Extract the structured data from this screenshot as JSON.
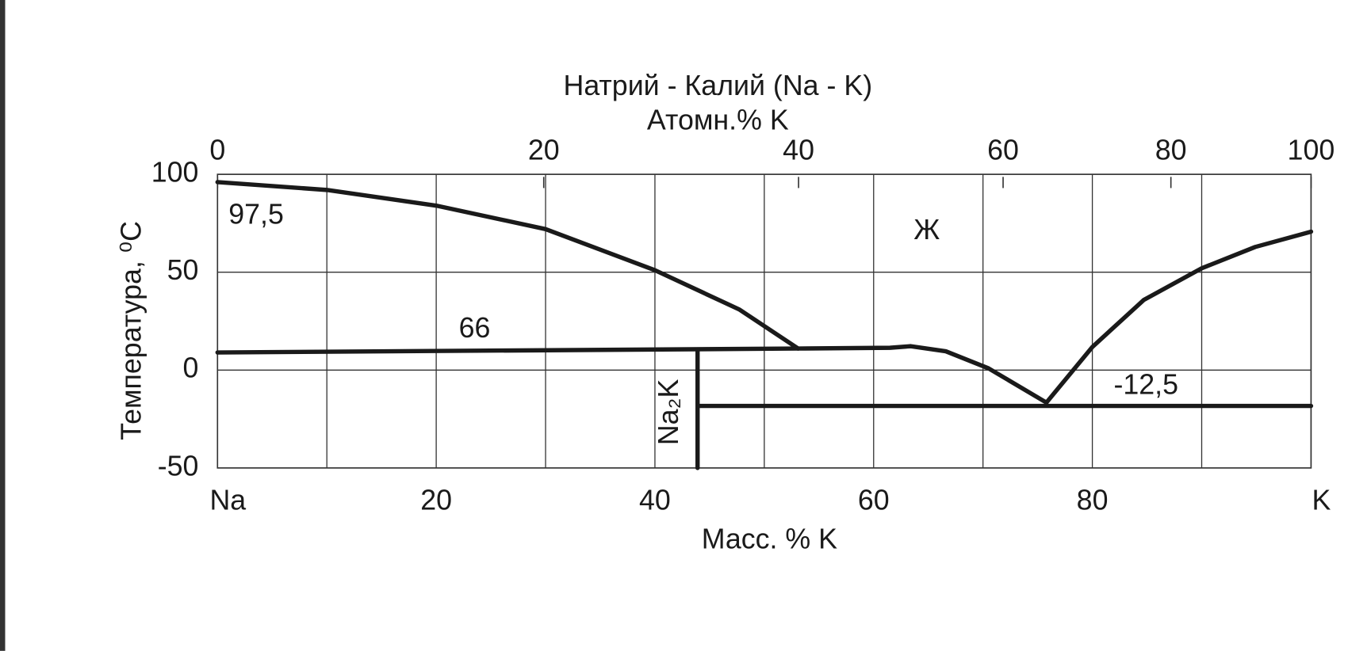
{
  "chart_data": {
    "type": "line",
    "title": "Натрий - Калий (Na - K)",
    "x2label": "Атомн.% K",
    "xlabel": "Масс. % K",
    "ylabel": "Температура, ⁰C",
    "xlim": [
      0,
      100
    ],
    "ylim": [
      -50,
      100
    ],
    "xticks": [
      {
        "value": 0,
        "label": "Na"
      },
      20,
      40,
      60,
      80,
      {
        "value": 100,
        "label": "K"
      }
    ],
    "xgrid": [
      10,
      30,
      50,
      70,
      90
    ],
    "yticks": [
      100,
      50,
      0,
      -50
    ],
    "x2ticks": [
      0,
      20,
      40,
      60,
      80,
      100
    ],
    "grid": true,
    "color": "#1a1a1a",
    "lines": [
      {
        "x": [
          0,
          10,
          20,
          30,
          40,
          47.7,
          53.1
        ],
        "y": [
          96,
          92,
          84,
          72,
          51,
          31,
          11
        ]
      },
      {
        "x": [
          0,
          53.1,
          61.5,
          63.4,
          66.6,
          70.5,
          75.8
        ],
        "y": [
          9,
          11,
          11.4,
          12.2,
          9.6,
          0.9,
          -16.6
        ]
      },
      {
        "x": [
          75.8,
          80,
          84.7,
          90,
          94.9,
          100
        ],
        "y": [
          -16.6,
          11.8,
          35.8,
          52,
          62.9,
          70.7
        ]
      },
      {
        "x": [
          44,
          100
        ],
        "y": [
          -18.3,
          -18.3
        ]
      },
      {
        "x": [
          43.9,
          43.9
        ],
        "y": [
          9.6,
          -50
        ]
      }
    ],
    "annotations": [
      "97,5",
      "66",
      "Ж",
      "-12,5",
      "Na₂K"
    ]
  }
}
